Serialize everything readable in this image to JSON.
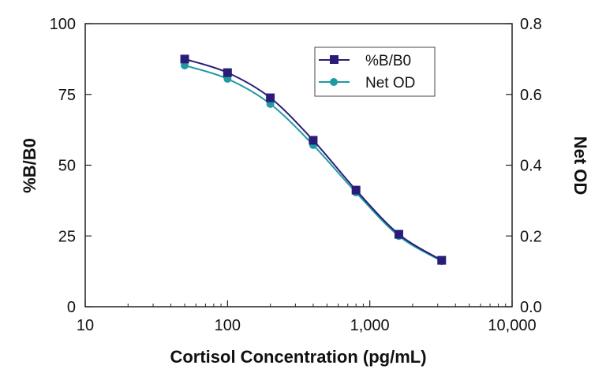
{
  "chart_data": {
    "type": "line",
    "xlabel": "Cortisol Concentration (pg/mL)",
    "ylabel": "%B/B0",
    "y2label": "Net OD",
    "x_scale": "log",
    "xlim": [
      10,
      10000
    ],
    "ylim": [
      0,
      100
    ],
    "y2lim": [
      0,
      0.8
    ],
    "x_ticks": [
      "10",
      "100",
      "1,000",
      "10,000"
    ],
    "x_tick_values": [
      10,
      100,
      1000,
      10000
    ],
    "y_ticks": [
      "0",
      "25",
      "50",
      "75",
      "100"
    ],
    "y_tick_values": [
      0,
      25,
      50,
      75,
      100
    ],
    "y2_ticks": [
      "0.0",
      "0.2",
      "0.4",
      "0.6",
      "0.8"
    ],
    "y2_tick_values": [
      0,
      0.2,
      0.4,
      0.6,
      0.8
    ],
    "grid": false,
    "legend_position": "top-right",
    "x": [
      50,
      100,
      200,
      400,
      800,
      1600,
      3200
    ],
    "series": [
      {
        "name": "%B/B0",
        "axis": "left",
        "marker": "square",
        "color": "#2a1d7a",
        "values": [
          87.5,
          82.7,
          73.8,
          58.8,
          41.2,
          25.6,
          16.4
        ]
      },
      {
        "name": "Net OD",
        "axis": "right",
        "marker": "circle",
        "color": "#1f9aa3",
        "values": [
          0.682,
          0.644,
          0.573,
          0.457,
          0.323,
          0.2,
          0.129
        ]
      }
    ]
  }
}
